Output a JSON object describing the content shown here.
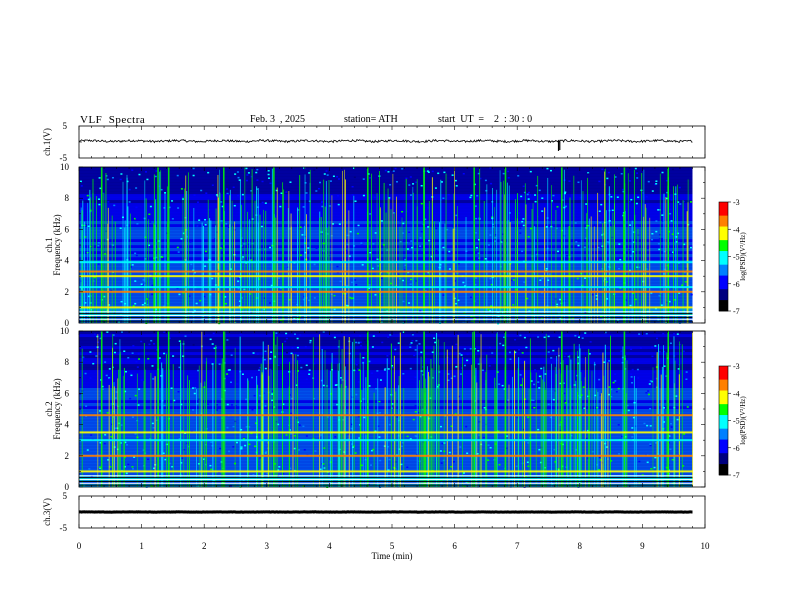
{
  "header": {
    "title": "VLF  Spectra",
    "date": "Feb. 3  , 2025",
    "station": "station= ATH",
    "start_ut": "start  UT  =    2  : 30 : 0"
  },
  "chart_data": [
    {
      "type": "line",
      "name": "ch1-waveform",
      "ylabel": "ch.1(V)",
      "ylim": [
        -5,
        5
      ],
      "yticks": [
        "5",
        "-5"
      ],
      "xlim": [
        0,
        10
      ],
      "trace_level": 0.3,
      "trace_noise": 0.35,
      "spikes": [
        {
          "x": 7.66,
          "y": -2.8
        },
        {
          "x": 7.68,
          "y": -2.5
        }
      ]
    },
    {
      "type": "heatmap",
      "name": "ch1-spectrogram",
      "ylabel": "Frequency  (kHz)",
      "channel_label": "ch.1",
      "ylim": [
        0,
        10
      ],
      "yticks": [
        "0",
        "2",
        "4",
        "6",
        "8",
        "10"
      ],
      "xlim": [
        0,
        9.8
      ],
      "colorbar": {
        "label": "log(PSD)(V²/Hz)",
        "range": [
          -7,
          -3
        ],
        "ticks": [
          "-3",
          "-4",
          "-5",
          "-6",
          "-7"
        ]
      },
      "bands_khz": [
        0.5,
        1.0,
        2.0,
        2.3,
        3.0,
        3.3,
        3.9
      ],
      "events_min": [
        0.35,
        1.25,
        1.42,
        2.3,
        3.1,
        4.6,
        5.5,
        6.3,
        6.8,
        7.7,
        8.7,
        9.4
      ]
    },
    {
      "type": "heatmap",
      "name": "ch2-spectrogram",
      "ylabel": "Frequency  (kHz)",
      "channel_label": "ch.2",
      "ylim": [
        0,
        10
      ],
      "yticks": [
        "0",
        "2",
        "4",
        "6",
        "8",
        "10"
      ],
      "xlim": [
        0,
        9.8
      ],
      "colorbar": {
        "label": "log(PSD)(V²/Hz)",
        "range": [
          -7,
          -3
        ],
        "ticks": [
          "-3",
          "-4",
          "-5",
          "-6",
          "-7"
        ]
      },
      "bands_khz": [
        0.5,
        1.0,
        2.0,
        3.0,
        3.5,
        4.6
      ],
      "events_min": [
        0.35,
        1.25,
        1.42,
        2.3,
        3.1,
        4.6,
        5.5,
        6.3,
        6.8,
        7.7,
        8.7,
        9.4
      ]
    },
    {
      "type": "line",
      "name": "ch3-waveform",
      "ylabel": "ch.3(V)",
      "ylim": [
        -5,
        5
      ],
      "yticks": [
        "5",
        "-5"
      ],
      "xlim": [
        0,
        10
      ],
      "trace_level": 0,
      "trace_noise": 0.04
    }
  ],
  "xaxis": {
    "label": "Time  (min)",
    "ticks": [
      "0",
      "1",
      "2",
      "3",
      "4",
      "5",
      "6",
      "7",
      "8",
      "9",
      "10"
    ]
  },
  "colors": {
    "colormap": [
      "#000000",
      "#00007f",
      "#0000ff",
      "#0080ff",
      "#00ffff",
      "#00ff00",
      "#ffff00",
      "#ff8000",
      "#ff0000",
      "#ffffff"
    ],
    "trace": "#000000"
  }
}
